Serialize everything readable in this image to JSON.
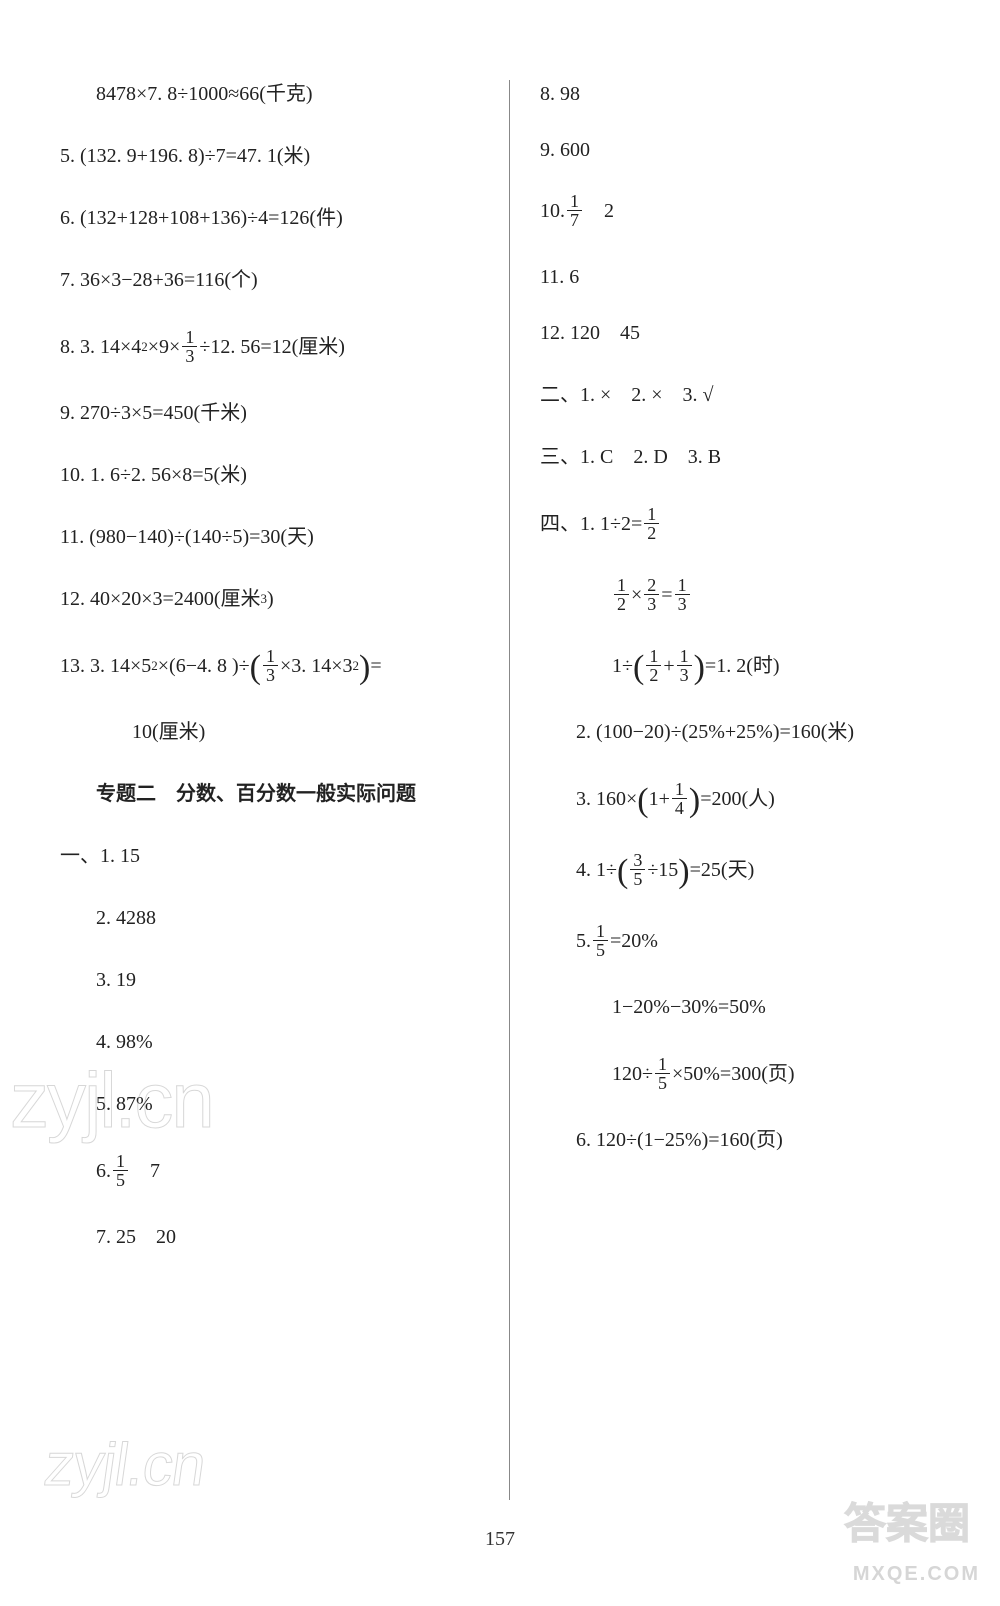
{
  "page_number": "157",
  "watermarks": {
    "zyjl1": "zyjl.cn",
    "zyjl2": "zyjl.cn",
    "daq": "答案圈",
    "mx": "MXQE.COM"
  },
  "left": {
    "l1_pre": "8478×7. 8÷1000≈66(千克)",
    "l5": "5. (132. 9+196. 8)÷7=47. 1(米)",
    "l6": "6. (132+128+108+136)÷4=126(件)",
    "l7": "7. 36×3−28+36=116(个)",
    "l8a": "8. 3. 14×4",
    "l8b": "×9×",
    "l8f_num": "1",
    "l8f_den": "3",
    "l8c": "÷12. 56=12(厘米)",
    "l9": "9. 270÷3×5=450(千米)",
    "l10": "10. 1. 6÷2. 56×8=5(米)",
    "l11": "11. (980−140)÷(140÷5)=30(天)",
    "l12a": "12. 40×20×3=2400(厘米",
    "l12b": ")",
    "l13a": "13. 3. 14×5",
    "l13b": "×(6−4. 8 )÷",
    "l13f_num": "1",
    "l13f_den": "3",
    "l13c": "×3. 14×3",
    "l13d": " =",
    "l13e": "10(厘米)",
    "title2": "专题二　分数、百分数一般实际问题",
    "sec1_label": "一、",
    "s1_1": "1. 15",
    "s1_2": "2. 4288",
    "s1_3": "3. 19",
    "s1_4": "4. 98%",
    "s1_5": "5. 87%",
    "s1_6a": "6. ",
    "s1_6_num": "1",
    "s1_6_den": "5",
    "s1_6b": "　7",
    "s1_7": "7. 25　20"
  },
  "right": {
    "r8": "8. 98",
    "r9": "9. 600",
    "r10a": "10. ",
    "r10_num": "1",
    "r10_den": "7",
    "r10b": "　2",
    "r11": "11. 6",
    "r12": "12. 120　45",
    "sec2_label": "二、",
    "s2": "1. ×　2. ×　3. √",
    "sec3_label": "三、",
    "s3": "1. C　2. D　3. B",
    "sec4_label": "四、",
    "s4_1a": "1. 1÷2=",
    "s4_1_num": "1",
    "s4_1_den": "2",
    "s4_1b_n1": "1",
    "s4_1b_d1": "2",
    "s4_1b_mid": "×",
    "s4_1b_n2": "2",
    "s4_1b_d2": "3",
    "s4_1b_eq": "=",
    "s4_1b_n3": "1",
    "s4_1b_d3": "3",
    "s4_1c_pre": "1÷",
    "s4_1c_n1": "1",
    "s4_1c_d1": "2",
    "s4_1c_plus": "+",
    "s4_1c_n2": "1",
    "s4_1c_d2": "3",
    "s4_1c_post": " =1. 2(时)",
    "s4_2": "2. (100−20)÷(25%+25%)=160(米)",
    "s4_3a": "3. 160×",
    "s4_3_pre": "1+",
    "s4_3_num": "1",
    "s4_3_den": "4",
    "s4_3b": " =200(人)",
    "s4_4a": "4. 1÷",
    "s4_4_num": "3",
    "s4_4_den": "5",
    "s4_4_mid": "÷15",
    "s4_4b": " =25(天)",
    "s4_5a": "5. ",
    "s4_5_num": "1",
    "s4_5_den": "5",
    "s4_5b": "=20%",
    "s4_5c": "1−20%−30%=50%",
    "s4_5d_pre": "120÷",
    "s4_5d_num": "1",
    "s4_5d_den": "5",
    "s4_5d_post": "×50%=300(页)",
    "s4_6": "6. 120÷(1−25%)=160(页)"
  }
}
